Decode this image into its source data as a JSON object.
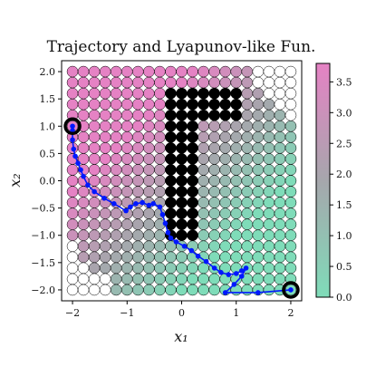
{
  "chart_data": {
    "type": "scatter",
    "title": "Trajectory and Lyapunov-like Fun.",
    "xlabel": "x₁",
    "ylabel": "x₂",
    "xlim": [
      -2.2,
      2.2
    ],
    "ylim": [
      -2.2,
      2.2
    ],
    "xticks": [
      -2,
      -1,
      0,
      1,
      2
    ],
    "xtick_labels": [
      "−2",
      "−1",
      "0",
      "1",
      "2"
    ],
    "yticks": [
      2.0,
      1.5,
      1.0,
      0.5,
      0.0,
      -0.5,
      -1.0,
      -1.5,
      -2.0
    ],
    "ytick_labels": [
      "2.0",
      "1.5",
      "1.0",
      "0.5",
      "0.0",
      "−0.5",
      "−1.0",
      "−1.5",
      "−2.0"
    ],
    "grid": {
      "spacing": 0.2,
      "range": [
        -2.0,
        2.0
      ],
      "value_field": "x2 - x1 + 2 (estimated)",
      "value_cap": 3.8
    },
    "obstacles": [
      {
        "x_range": [
          -0.2,
          0.2
        ],
        "y_range": [
          -1.0,
          1.6
        ]
      },
      {
        "x_range": [
          -0.2,
          1.0
        ],
        "y_range": [
          1.2,
          1.6
        ]
      }
    ],
    "unreachable_region": [
      {
        "x": -2.0,
        "y_max": -1.2
      },
      {
        "x": -1.8,
        "y_max": -1.6
      },
      {
        "x": -1.6,
        "y_max": -1.8
      },
      {
        "x": -1.4,
        "y_max": -1.8
      },
      {
        "x": 1.2,
        "y_min": 2.2
      },
      {
        "x": 1.4,
        "y_min": 1.8
      },
      {
        "x": 1.6,
        "y_min": 1.6
      },
      {
        "x": 1.8,
        "y_min": 1.4
      },
      {
        "x": 2.0,
        "y_min": 1.2
      }
    ],
    "trajectory": {
      "x": [
        -2.0,
        -2.0,
        -2.0,
        -1.98,
        -1.95,
        -1.9,
        -1.85,
        -1.8,
        -1.72,
        -1.6,
        -1.42,
        -1.24,
        -1.02,
        -0.94,
        -0.84,
        -0.72,
        -0.6,
        -0.52,
        -0.4,
        -0.35,
        -0.3,
        -0.25,
        -0.2,
        -0.1,
        0.05,
        0.18,
        0.3,
        0.45,
        0.6,
        0.72,
        0.86,
        1.0,
        1.1,
        1.18,
        1.1,
        0.96,
        0.8,
        1.4,
        2.0
      ],
      "y": [
        1.0,
        0.92,
        0.75,
        0.58,
        0.45,
        0.32,
        0.2,
        0.08,
        -0.08,
        -0.2,
        -0.32,
        -0.42,
        -0.55,
        -0.48,
        -0.42,
        -0.4,
        -0.45,
        -0.42,
        -0.48,
        -0.62,
        -0.78,
        -0.95,
        -1.05,
        -1.12,
        -1.2,
        -1.28,
        -1.38,
        -1.48,
        -1.6,
        -1.68,
        -1.72,
        -1.7,
        -1.65,
        -1.6,
        -1.75,
        -1.9,
        -2.05,
        -2.05,
        -2.0
      ],
      "color": "#0018ff"
    },
    "start": {
      "x": -2.0,
      "y": 1.0
    },
    "goal": {
      "x": 2.0,
      "y": -2.0
    },
    "colorbar": {
      "min": 0.0,
      "max": 3.8,
      "ticks": [
        0.0,
        0.5,
        1.0,
        1.5,
        2.0,
        2.5,
        3.0,
        3.5
      ],
      "tick_labels": [
        "0.0",
        "0.5",
        "1.0",
        "1.5",
        "2.0",
        "2.5",
        "3.0",
        "3.5"
      ],
      "color_low": "#7fdcb9",
      "color_mid": "#a6a6ac",
      "color_high": "#e582c4"
    }
  }
}
